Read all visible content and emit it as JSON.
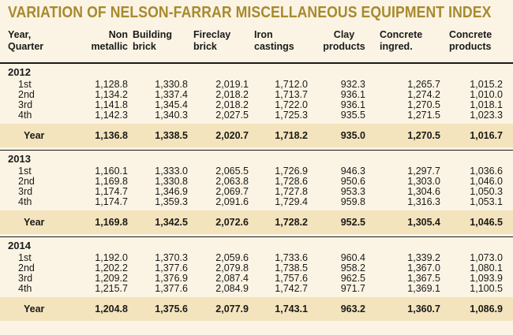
{
  "title": "VARIATION OF NELSON-FARRAR MISCELLANEOUS EQUIPMENT INDEX",
  "columns": [
    {
      "line1": "Year,",
      "line2": "Quarter"
    },
    {
      "line1": "Non",
      "line2": "metallic"
    },
    {
      "line1": "Building",
      "line2": "brick"
    },
    {
      "line1": "Fireclay",
      "line2": "brick"
    },
    {
      "line1": "Iron",
      "line2": "castings"
    },
    {
      "line1": "Clay",
      "line2": "products"
    },
    {
      "line1": "Concrete",
      "line2": "ingred."
    },
    {
      "line1": "Concrete",
      "line2": "products"
    }
  ],
  "sections": [
    {
      "year": "2012",
      "rows": [
        {
          "q": "1st",
          "v": [
            "1,128.8",
            "1,330.8",
            "2,019.1",
            "1,712.0",
            "932.3",
            "1,265.7",
            "1,015.2"
          ]
        },
        {
          "q": "2nd",
          "v": [
            "1,134.2",
            "1,337.4",
            "2,018.2",
            "1,713.7",
            "936.1",
            "1,274.2",
            "1,010.0"
          ]
        },
        {
          "q": "3rd",
          "v": [
            "1,141.8",
            "1,345.4",
            "2,018.2",
            "1,722.0",
            "936.1",
            "1,270.5",
            "1,018.1"
          ]
        },
        {
          "q": "4th",
          "v": [
            "1,142.3",
            "1,340.3",
            "2,027.5",
            "1,725.3",
            "935.5",
            "1,271.5",
            "1,023.3"
          ]
        }
      ],
      "total": {
        "label": "Year",
        "v": [
          "1,136.8",
          "1,338.5",
          "2,020.7",
          "1,718.2",
          "935.0",
          "1,270.5",
          "1,016.7"
        ]
      }
    },
    {
      "year": "2013",
      "rows": [
        {
          "q": "1st",
          "v": [
            "1,160.1",
            "1,333.0",
            "2,065.5",
            "1,726.9",
            "946.3",
            "1,297.7",
            "1,036.6"
          ]
        },
        {
          "q": "2nd",
          "v": [
            "1,169.8",
            "1,330.8",
            "2,063.8",
            "1,728.6",
            "950.6",
            "1,303.0",
            "1,046.0"
          ]
        },
        {
          "q": "3rd",
          "v": [
            "1,174.7",
            "1,346.9",
            "2,069.7",
            "1,727.8",
            "953.3",
            "1,304.6",
            "1,050.3"
          ]
        },
        {
          "q": "4th",
          "v": [
            "1,174.7",
            "1,359.3",
            "2,091.6",
            "1,729.4",
            "959.8",
            "1,316.3",
            "1,053.1"
          ]
        }
      ],
      "total": {
        "label": "Year",
        "v": [
          "1,169.8",
          "1,342.5",
          "2,072.6",
          "1,728.2",
          "952.5",
          "1,305.4",
          "1,046.5"
        ]
      }
    },
    {
      "year": "2014",
      "rows": [
        {
          "q": "1st",
          "v": [
            "1,192.0",
            "1,370.3",
            "2,059.6",
            "1,733.6",
            "960.4",
            "1,339.2",
            "1,073.0"
          ]
        },
        {
          "q": "2nd",
          "v": [
            "1,202.2",
            "1,377.6",
            "2,079.8",
            "1,738.5",
            "958.2",
            "1,367.0",
            "1,080.1"
          ]
        },
        {
          "q": "3rd",
          "v": [
            "1,209.2",
            "1,376.9",
            "2,087.4",
            "1,757.6",
            "962.5",
            "1,367.5",
            "1,093.9"
          ]
        },
        {
          "q": "4th",
          "v": [
            "1,215.7",
            "1,377.6",
            "2,084.9",
            "1,742.7",
            "971.7",
            "1,369.1",
            "1,100.5"
          ]
        }
      ],
      "total": {
        "label": "Year",
        "v": [
          "1,204.8",
          "1,375.6",
          "2,077.9",
          "1,743.1",
          "963.2",
          "1,360.7",
          "1,086.9"
        ]
      }
    }
  ]
}
